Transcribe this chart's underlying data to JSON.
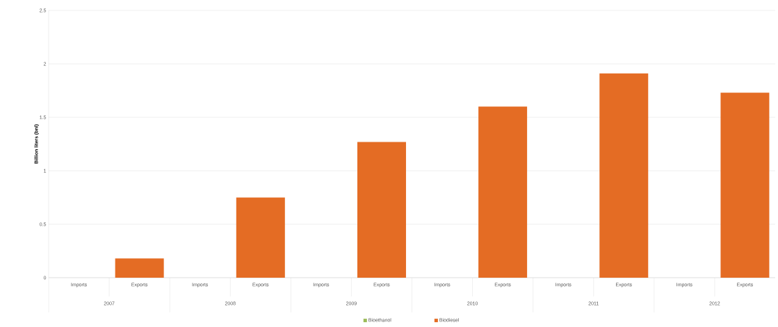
{
  "chart_data": {
    "type": "bar",
    "ylabel": "Billion liters (bnl)",
    "categories": [
      "Imports",
      "Exports",
      "Imports",
      "Exports",
      "Imports",
      "Exports",
      "Imports",
      "Exports",
      "Imports",
      "Exports",
      "Imports",
      "Exports"
    ],
    "annotations": [
      "2007",
      "2008",
      "2009",
      "2010",
      "2011",
      "2012"
    ],
    "series": [
      {
        "name": "Bioethanol",
        "color": "#9bbb59",
        "values": [
          null,
          null,
          null,
          null,
          null,
          null,
          null,
          null,
          null,
          null,
          null,
          null
        ]
      },
      {
        "name": "Biodiesel",
        "color": "#e46c24",
        "values": [
          null,
          0.18,
          null,
          0.75,
          null,
          1.27,
          null,
          1.6,
          null,
          1.91,
          null,
          1.73
        ]
      }
    ],
    "ylim": [
      0,
      2.5
    ],
    "yticks": [
      0,
      0.5,
      1,
      1.5,
      2,
      2.5
    ],
    "grid": "y",
    "legend": "bottom"
  }
}
